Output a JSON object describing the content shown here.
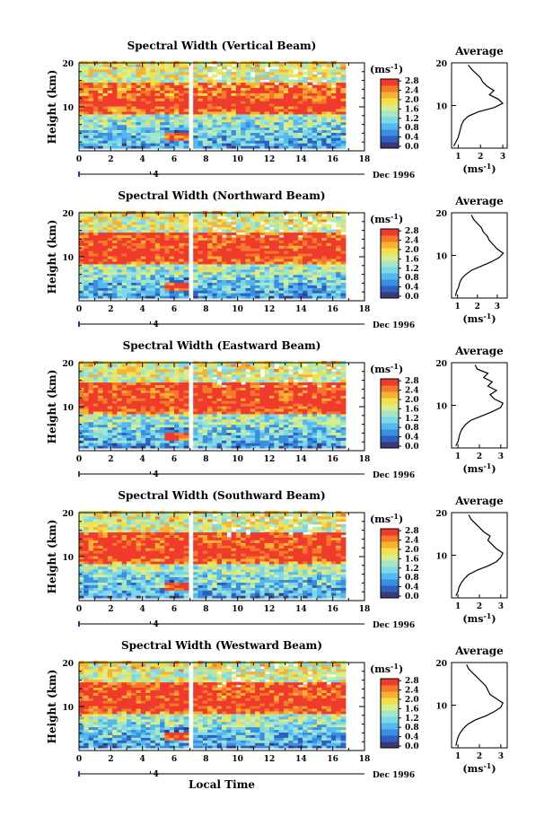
{
  "figure": {
    "xlabel": "Local Time",
    "date_label": "Dec 1996",
    "date_tick": "4",
    "ylabel": "Height (km)",
    "colorbar_unit": "(ms",
    "colorbar_unit_exp": "-1",
    "colorbar_unit_close": ")",
    "colorbar_ticks": [
      "0.0",
      "0.4",
      "0.8",
      "1.2",
      "1.6",
      "2.0",
      "2.4",
      "2.8"
    ],
    "colormap": [
      "#3a3a7a",
      "#2f5fbf",
      "#3b8fe0",
      "#56b8f0",
      "#7dd8e8",
      "#a6e6c6",
      "#d7ee8a",
      "#f3e04c",
      "#f9b133",
      "#f47a2a",
      "#ef3b2c"
    ],
    "avg_title": "Average",
    "avg_xlabel_base": "(ms",
    "avg_xlabel_exp": "-1",
    "avg_xlabel_close": ")"
  },
  "chart_data": [
    {
      "type": "heatmap",
      "title": "Spectral Width (Vertical Beam)",
      "x_ticks": [
        "0",
        "2",
        "4",
        "6",
        "8",
        "10",
        "12",
        "14",
        "16",
        "18"
      ],
      "xlim": [
        0,
        18
      ],
      "y_ticks": [
        "10",
        "20"
      ],
      "ylim": [
        0,
        20
      ],
      "data_gap_hours": [
        6.7,
        7.0
      ],
      "profile": {
        "title": "Average",
        "x_ticks": [
          "1",
          "2",
          "3"
        ],
        "xlim": [
          0.7,
          3.2
        ],
        "height_km": [
          0.5,
          1.5,
          2.5,
          3.5,
          4.5,
          5.5,
          6.5,
          7.5,
          8.5,
          9.5,
          10.5,
          11.5,
          12.5,
          13.5,
          14.5,
          15.5,
          16.5,
          17.5,
          18.5,
          19.5
        ],
        "width_ms": [
          0.8,
          0.9,
          1.0,
          1.05,
          1.1,
          1.15,
          1.25,
          1.45,
          1.9,
          2.6,
          3.0,
          2.8,
          2.4,
          2.6,
          2.3,
          2.1,
          2.0,
          1.8,
          1.6,
          1.45
        ]
      }
    },
    {
      "type": "heatmap",
      "title": "Spectral Width (Northward Beam)",
      "x_ticks": [
        "0",
        "2",
        "4",
        "6",
        "8",
        "10",
        "12",
        "14",
        "16",
        "18"
      ],
      "xlim": [
        0,
        18
      ],
      "y_ticks": [
        "10",
        "20"
      ],
      "ylim": [
        0,
        20
      ],
      "data_gap_hours": [
        6.7,
        7.0
      ],
      "profile": {
        "title": "Average",
        "x_ticks": [
          "1",
          "2",
          "3"
        ],
        "xlim": [
          0.7,
          3.5
        ],
        "height_km": [
          0.5,
          1.5,
          2.5,
          3.5,
          4.5,
          5.5,
          6.5,
          7.5,
          8.5,
          9.5,
          10.5,
          11.5,
          12.5,
          13.5,
          14.5,
          15.5,
          16.5,
          17.5,
          18.5,
          19.5
        ],
        "width_ms": [
          0.9,
          0.95,
          1.05,
          1.1,
          1.2,
          1.4,
          1.7,
          2.2,
          2.7,
          3.1,
          3.3,
          3.0,
          2.8,
          2.6,
          2.5,
          2.3,
          2.2,
          2.0,
          1.8,
          1.7
        ]
      }
    },
    {
      "type": "heatmap",
      "title": "Spectral Width (Eastward Beam)",
      "x_ticks": [
        "0",
        "2",
        "4",
        "6",
        "8",
        "10",
        "12",
        "14",
        "16",
        "18"
      ],
      "xlim": [
        0,
        18
      ],
      "y_ticks": [
        "10",
        "20"
      ],
      "ylim": [
        0,
        20
      ],
      "data_gap_hours": [
        6.7,
        7.0
      ],
      "profile": {
        "title": "Average",
        "x_ticks": [
          "1",
          "2",
          "3"
        ],
        "xlim": [
          0.7,
          3.3
        ],
        "height_km": [
          0.5,
          1.5,
          2.5,
          3.5,
          4.5,
          5.5,
          6.5,
          7.5,
          8.5,
          9.5,
          10.5,
          11.5,
          12.5,
          13.5,
          14.5,
          15.5,
          16.5,
          17.5,
          18.5,
          19.5
        ],
        "width_ms": [
          0.9,
          1.0,
          1.05,
          1.1,
          1.2,
          1.35,
          1.6,
          2.1,
          2.6,
          3.0,
          3.1,
          2.7,
          2.5,
          2.8,
          2.4,
          2.6,
          2.2,
          2.4,
          1.9,
          1.8
        ]
      }
    },
    {
      "type": "heatmap",
      "title": "Spectral Width (Southward Beam)",
      "x_ticks": [
        "0",
        "2",
        "4",
        "6",
        "8",
        "10",
        "12",
        "14",
        "16",
        "18"
      ],
      "xlim": [
        0,
        18
      ],
      "y_ticks": [
        "10",
        "20"
      ],
      "ylim": [
        0,
        20
      ],
      "data_gap_hours": [
        6.7,
        7.0
      ],
      "profile": {
        "title": "Average",
        "x_ticks": [
          "1",
          "2",
          "3"
        ],
        "xlim": [
          0.7,
          3.3
        ],
        "height_km": [
          0.5,
          1.5,
          2.5,
          3.5,
          4.5,
          5.5,
          6.5,
          7.5,
          8.5,
          9.5,
          10.5,
          11.5,
          12.5,
          13.5,
          14.5,
          15.5,
          16.5,
          17.5,
          18.5,
          19.5
        ],
        "width_ms": [
          0.9,
          1.0,
          1.05,
          1.15,
          1.3,
          1.5,
          1.9,
          2.4,
          2.8,
          3.0,
          3.1,
          2.8,
          2.6,
          2.4,
          2.5,
          2.2,
          2.0,
          1.8,
          1.6,
          1.5
        ]
      }
    },
    {
      "type": "heatmap",
      "title": "Spectral Width (Westward Beam)",
      "x_ticks": [
        "0",
        "2",
        "4",
        "6",
        "8",
        "10",
        "12",
        "14",
        "16",
        "18"
      ],
      "xlim": [
        0,
        18
      ],
      "y_ticks": [
        "10",
        "20"
      ],
      "ylim": [
        0,
        20
      ],
      "data_gap_hours": [
        6.7,
        7.0
      ],
      "profile": {
        "title": "Average",
        "x_ticks": [
          "1",
          "2",
          "3"
        ],
        "xlim": [
          0.7,
          3.3
        ],
        "height_km": [
          0.5,
          1.5,
          2.5,
          3.5,
          4.5,
          5.5,
          6.5,
          7.5,
          8.5,
          9.5,
          10.5,
          11.5,
          12.5,
          13.5,
          14.5,
          15.5,
          16.5,
          17.5,
          18.5,
          19.5
        ],
        "width_ms": [
          0.9,
          0.95,
          1.0,
          1.1,
          1.25,
          1.45,
          1.8,
          2.3,
          2.7,
          3.0,
          3.1,
          2.8,
          2.5,
          2.4,
          2.3,
          2.1,
          1.9,
          1.7,
          1.5,
          1.4
        ]
      }
    }
  ]
}
